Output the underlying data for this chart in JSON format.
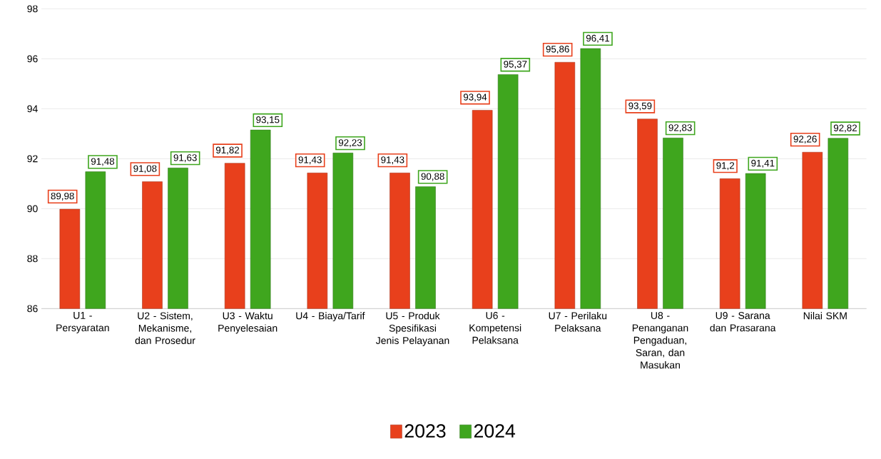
{
  "chart_data": {
    "type": "bar",
    "categories": [
      "U1 - Persyaratan",
      "U2 - Sistem, Mekanisme, dan Prosedur",
      "U3 - Waktu Penyelesaian",
      "U4 - Biaya/Tarif",
      "U5 - Produk Spesifikasi Jenis Pelayanan",
      "U6 - Kompetensi Pelaksana",
      "U7 - Perilaku Pelaksana",
      "U8 - Penanganan Pengaduan, Saran, dan Masukan",
      "U9 - Sarana dan Prasarana",
      "Nilai SKM"
    ],
    "series": [
      {
        "name": "2023",
        "color": "#e8401c",
        "values": [
          89.98,
          91.08,
          91.82,
          91.43,
          91.43,
          93.94,
          95.86,
          93.59,
          91.2,
          92.26
        ],
        "value_labels": [
          "89,98",
          "91,08",
          "91,82",
          "91,43",
          "91,43",
          "93,94",
          "95,86",
          "93,59",
          "91,2",
          "92,26"
        ]
      },
      {
        "name": "2024",
        "color": "#3fa61e",
        "values": [
          91.48,
          91.63,
          93.15,
          92.23,
          90.88,
          95.37,
          96.41,
          92.83,
          91.41,
          92.82
        ],
        "value_labels": [
          "91,48",
          "91,63",
          "93,15",
          "92,23",
          "90,88",
          "95,37",
          "96,41",
          "92,83",
          "91,41",
          "92,82"
        ]
      }
    ],
    "ylim": [
      86,
      98
    ],
    "yticks": [
      86,
      88,
      90,
      92,
      94,
      96,
      98
    ],
    "grid": "y",
    "legend": "bottom"
  }
}
